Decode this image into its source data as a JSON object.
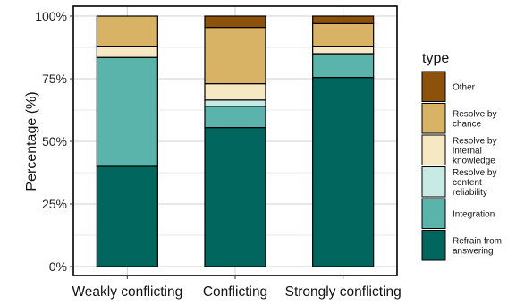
{
  "chart_data": {
    "type": "bar",
    "stacked": true,
    "percent": true,
    "title": "",
    "xlabel": "",
    "ylabel": "Percentage (%)",
    "ylim": [
      0,
      100
    ],
    "yticks": [
      "0%",
      "25%",
      "50%",
      "75%",
      "100%"
    ],
    "grid": true,
    "legend_position": "right",
    "legend_title": "type",
    "categories": [
      "Weakly conflicting",
      "Conflicting",
      "Strongly conflicting"
    ],
    "series": [
      {
        "name": "Refrain from answering",
        "color": "#01665e",
        "values": [
          40,
          55.5,
          75.5
        ]
      },
      {
        "name": "Integration",
        "color": "#5ab4ac",
        "values": [
          43.5,
          8.5,
          9
        ]
      },
      {
        "name": "Resolve by content reliability",
        "color": "#c7eae5",
        "values": [
          0,
          2.5,
          0.5
        ]
      },
      {
        "name": "Resolve by internal knowledge",
        "color": "#f6e8c3",
        "values": [
          4.5,
          6.5,
          3
        ]
      },
      {
        "name": "Resolve by chance",
        "color": "#d8b365",
        "values": [
          12,
          22.5,
          9
        ]
      },
      {
        "name": "Other",
        "color": "#8c510a",
        "values": [
          0,
          4.5,
          3
        ]
      }
    ]
  }
}
